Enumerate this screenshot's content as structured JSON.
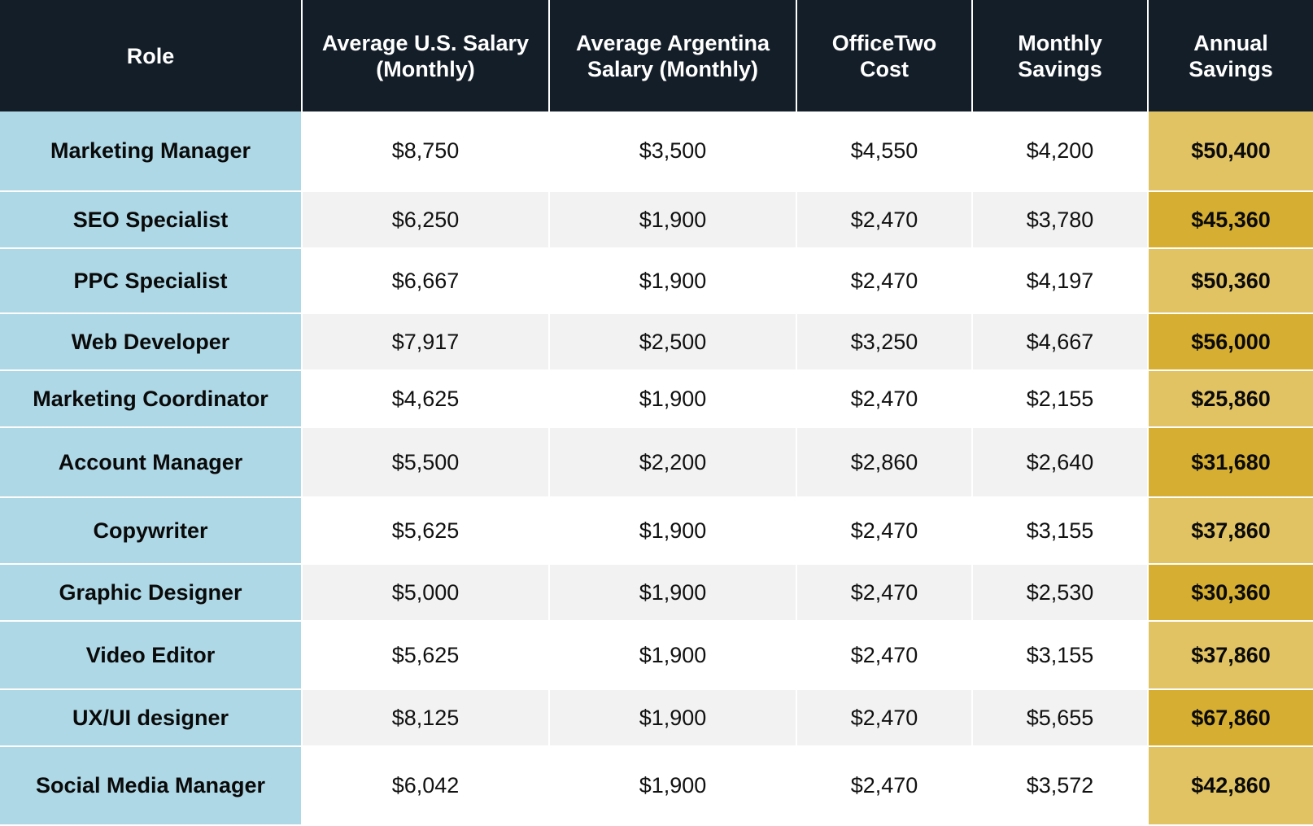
{
  "headers": {
    "role": "Role",
    "us_salary_line1": "Average U.S. Salary",
    "us_salary_line2": "(Monthly)",
    "ar_salary_line1": "Average Argentina",
    "ar_salary_line2": "Salary (Monthly)",
    "cost_line1": "OfficeTwo",
    "cost_line2": "Cost",
    "monthly_line1": "Monthly",
    "monthly_line2": "Savings",
    "annual_line1": "Annual",
    "annual_line2": "Savings"
  },
  "rows": [
    {
      "role": "Marketing Manager",
      "us": "$8,750",
      "ar": "$3,500",
      "cost": "$4,550",
      "monthly": "$4,200",
      "annual": "$50,400"
    },
    {
      "role": "SEO Specialist",
      "us": "$6,250",
      "ar": "$1,900",
      "cost": "$2,470",
      "monthly": "$3,780",
      "annual": "$45,360"
    },
    {
      "role": "PPC Specialist",
      "us": "$6,667",
      "ar": "$1,900",
      "cost": "$2,470",
      "monthly": "$4,197",
      "annual": "$50,360"
    },
    {
      "role": "Web Developer",
      "us": "$7,917",
      "ar": "$2,500",
      "cost": "$3,250",
      "monthly": "$4,667",
      "annual": "$56,000"
    },
    {
      "role": "Marketing Coordinator",
      "us": "$4,625",
      "ar": "$1,900",
      "cost": "$2,470",
      "monthly": "$2,155",
      "annual": "$25,860"
    },
    {
      "role": "Account Manager",
      "us": "$5,500",
      "ar": "$2,200",
      "cost": "$2,860",
      "monthly": "$2,640",
      "annual": "$31,680"
    },
    {
      "role": "Copywriter",
      "us": "$5,625",
      "ar": "$1,900",
      "cost": "$2,470",
      "monthly": "$3,155",
      "annual": "$37,860"
    },
    {
      "role": "Graphic Designer",
      "us": "$5,000",
      "ar": "$1,900",
      "cost": "$2,470",
      "monthly": "$2,530",
      "annual": "$30,360"
    },
    {
      "role": "Video Editor",
      "us": "$5,625",
      "ar": "$1,900",
      "cost": "$2,470",
      "monthly": "$3,155",
      "annual": "$37,860"
    },
    {
      "role": "UX/UI designer",
      "us": "$8,125",
      "ar": "$1,900",
      "cost": "$2,470",
      "monthly": "$5,655",
      "annual": "$67,860"
    },
    {
      "role": "Social Media Manager",
      "us": "$6,042",
      "ar": "$1,900",
      "cost": "$2,470",
      "monthly": "$3,572",
      "annual": "$42,860"
    }
  ],
  "colors": {
    "header_bg": "#141e28",
    "role_bg": "#aed8e6",
    "annual_light": "#e1c364",
    "annual_dark": "#d5ae32",
    "row_alt": "#f2f2f2"
  }
}
